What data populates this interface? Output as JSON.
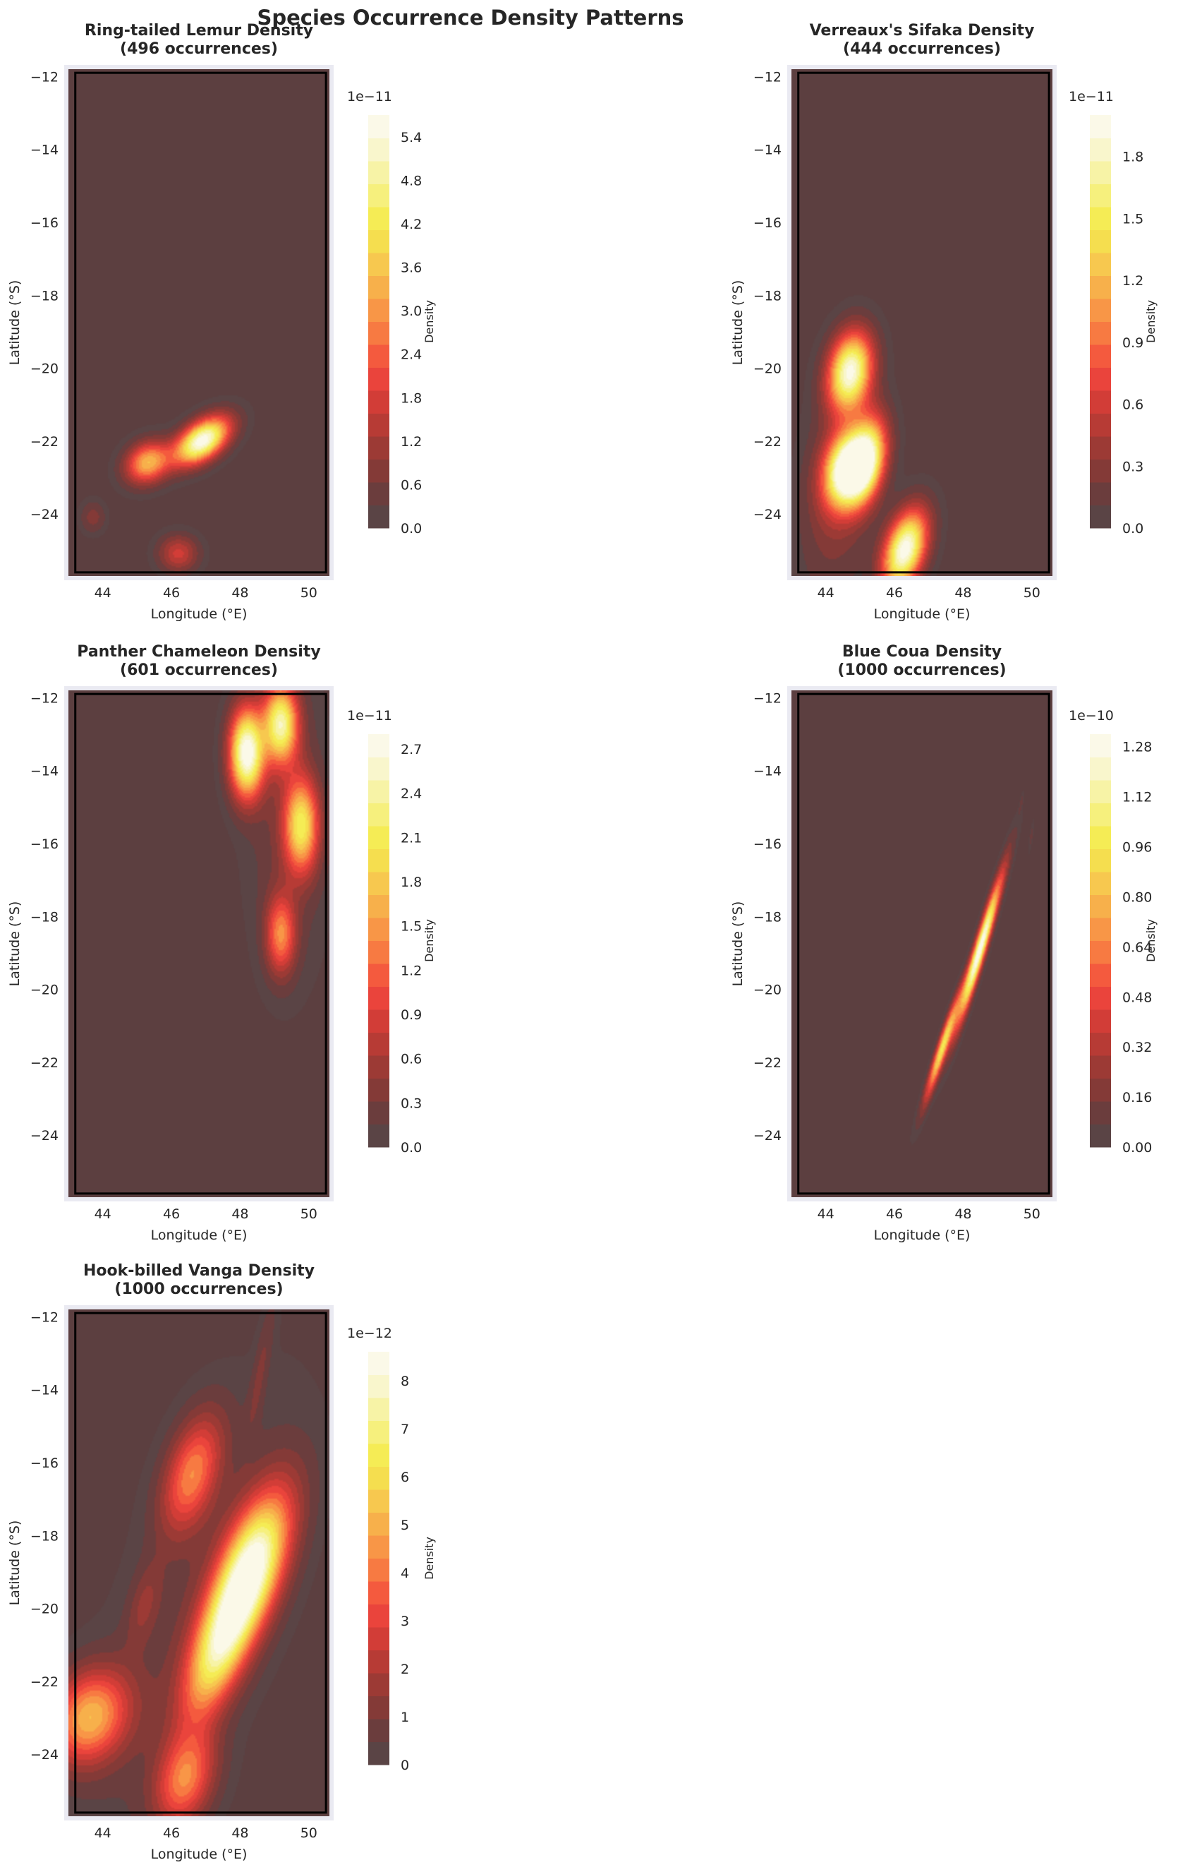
{
  "figure": {
    "title": "Species Occurrence Density Patterns"
  },
  "colors": {
    "background_fill": "#5c3f40",
    "axes_frame": "#eaeaf2",
    "colormap": [
      "#5a4445",
      "#6b3d3d",
      "#843a37",
      "#9c3a35",
      "#b73b35",
      "#d23d37",
      "#ea443c",
      "#f45a3e",
      "#f77a42",
      "#f89647",
      "#f7b04b",
      "#f7c84f",
      "#f5de4f",
      "#f5ec55",
      "#f6f07d",
      "#f7f3a6",
      "#f9f6cc",
      "#fbf9e8"
    ]
  },
  "chart_data": [
    {
      "type": "heatmap",
      "title": "Ring-tailed Lemur Density\n(496 occurrences)",
      "title_lines": [
        "Ring-tailed Lemur Density",
        "(496 occurrences)"
      ],
      "xlabel": "Longitude (°E)",
      "ylabel": "Latitude (°S)",
      "xlim": [
        43.0,
        50.6
      ],
      "ylim": [
        -25.7,
        -11.8
      ],
      "xticks": [
        44,
        46,
        48,
        50
      ],
      "yticks": [
        -12,
        -14,
        -16,
        -18,
        -20,
        -22,
        -24
      ],
      "colorbar": {
        "label": "Density",
        "offset_text": "1e−11",
        "ticks": [
          "0.0",
          "0.6",
          "1.2",
          "1.8",
          "2.4",
          "3.0",
          "3.6",
          "4.2",
          "4.8",
          "5.4"
        ],
        "max": 5.7
      },
      "hotspots": [
        {
          "lon": 46.9,
          "lat": -22.0,
          "sx": 0.55,
          "sy": 0.45,
          "rho": 0.5,
          "amp": 5.7
        },
        {
          "lon": 45.3,
          "lat": -22.6,
          "sx": 0.45,
          "sy": 0.4,
          "rho": 0.2,
          "amp": 3.4
        },
        {
          "lon": 46.2,
          "lat": -25.1,
          "sx": 0.4,
          "sy": 0.35,
          "rho": 0.0,
          "amp": 1.7
        },
        {
          "lon": 43.7,
          "lat": -24.1,
          "sx": 0.25,
          "sy": 0.3,
          "rho": 0.0,
          "amp": 0.8
        }
      ]
    },
    {
      "type": "heatmap",
      "title": "Verreaux's Sifaka Density\n(444 occurrences)",
      "title_lines": [
        "Verreaux's Sifaka Density",
        "(444 occurrences)"
      ],
      "xlabel": "Longitude (°E)",
      "ylabel": "Latitude (°S)",
      "xlim": [
        43.0,
        50.6
      ],
      "ylim": [
        -25.7,
        -11.8
      ],
      "xticks": [
        44,
        46,
        48,
        50
      ],
      "yticks": [
        -12,
        -14,
        -16,
        -18,
        -20,
        -22,
        -24
      ],
      "colorbar": {
        "label": "Density",
        "offset_text": "1e−11",
        "ticks": [
          "0.0",
          "0.3",
          "0.6",
          "0.9",
          "1.2",
          "1.5",
          "1.8"
        ],
        "max": 2.0
      },
      "hotspots": [
        {
          "lon": 44.7,
          "lat": -20.1,
          "sx": 0.45,
          "sy": 0.75,
          "rho": 0.2,
          "amp": 1.9
        },
        {
          "lon": 44.6,
          "lat": -22.8,
          "sx": 0.45,
          "sy": 0.7,
          "rho": 0.2,
          "amp": 1.95
        },
        {
          "lon": 45.2,
          "lat": -22.5,
          "sx": 0.4,
          "sy": 0.8,
          "rho": 0.3,
          "amp": 1.6
        },
        {
          "lon": 46.3,
          "lat": -25.0,
          "sx": 0.45,
          "sy": 0.75,
          "rho": 0.4,
          "amp": 2.0
        },
        {
          "lon": 44.3,
          "lat": -23.5,
          "sx": 0.7,
          "sy": 1.8,
          "rho": 0.2,
          "amp": 0.35
        }
      ]
    },
    {
      "type": "heatmap",
      "title": "Panther Chameleon Density\n(601 occurrences)",
      "title_lines": [
        "Panther Chameleon Density",
        "(601 occurrences)"
      ],
      "xlabel": "Longitude (°E)",
      "ylabel": "Latitude (°S)",
      "xlim": [
        43.0,
        50.6
      ],
      "ylim": [
        -25.7,
        -11.8
      ],
      "xticks": [
        44,
        46,
        48,
        50
      ],
      "yticks": [
        -12,
        -14,
        -16,
        -18,
        -20,
        -22,
        -24
      ],
      "colorbar": {
        "label": "Density",
        "offset_text": "1e−11",
        "ticks": [
          "0.0",
          "0.3",
          "0.6",
          "0.9",
          "1.2",
          "1.5",
          "1.8",
          "2.1",
          "2.4",
          "2.7"
        ],
        "max": 2.8
      },
      "hotspots": [
        {
          "lon": 48.2,
          "lat": -13.5,
          "sx": 0.35,
          "sy": 0.85,
          "rho": 0.0,
          "amp": 2.8
        },
        {
          "lon": 49.2,
          "lat": -12.7,
          "sx": 0.35,
          "sy": 0.75,
          "rho": 0.0,
          "amp": 2.3
        },
        {
          "lon": 49.8,
          "lat": -15.5,
          "sx": 0.35,
          "sy": 0.9,
          "rho": 0.0,
          "amp": 1.9
        },
        {
          "lon": 49.2,
          "lat": -18.5,
          "sx": 0.3,
          "sy": 0.75,
          "rho": 0.0,
          "amp": 1.3
        },
        {
          "lon": 49.4,
          "lat": -15.5,
          "sx": 0.8,
          "sy": 2.8,
          "rho": 0.0,
          "amp": 0.3
        }
      ]
    },
    {
      "type": "heatmap",
      "title": "Blue Coua Density\n(1000 occurrences)",
      "title_lines": [
        "Blue Coua Density",
        "(1000 occurrences)"
      ],
      "xlabel": "Longitude (°E)",
      "ylabel": "Latitude (°S)",
      "xlim": [
        43.0,
        50.6
      ],
      "ylim": [
        -25.7,
        -11.8
      ],
      "xticks": [
        44,
        46,
        48,
        50
      ],
      "yticks": [
        -12,
        -14,
        -16,
        -18,
        -20,
        -22,
        -24
      ],
      "colorbar": {
        "label": "Density",
        "offset_text": "1e−10",
        "ticks": [
          "0.00",
          "0.16",
          "0.32",
          "0.48",
          "0.64",
          "0.80",
          "0.96",
          "1.12",
          "1.28"
        ],
        "max": 1.32
      },
      "hotspots": [
        {
          "lon": 48.5,
          "lat": -18.9,
          "sx": 0.45,
          "sy": 1.4,
          "rho": 0.96,
          "amp": 1.32
        },
        {
          "lon": 47.4,
          "lat": -21.6,
          "sx": 0.35,
          "sy": 1.0,
          "rho": 0.95,
          "amp": 0.95
        },
        {
          "lon": 49.7,
          "lat": -14.9,
          "sx": 0.05,
          "sy": 0.2,
          "rho": 0.8,
          "amp": 0.1
        },
        {
          "lon": 50.0,
          "lat": -15.8,
          "sx": 0.06,
          "sy": 0.3,
          "rho": 0.8,
          "amp": 0.1
        }
      ]
    },
    {
      "type": "heatmap",
      "title": "Hook-billed Vanga Density\n(1000 occurrences)",
      "title_lines": [
        "Hook-billed Vanga Density",
        "(1000 occurrences)"
      ],
      "xlabel": "Longitude (°E)",
      "ylabel": "Latitude (°S)",
      "xlim": [
        43.0,
        50.6
      ],
      "ylim": [
        -25.7,
        -11.8
      ],
      "xticks": [
        44,
        46,
        48,
        50
      ],
      "yticks": [
        -12,
        -14,
        -16,
        -18,
        -20,
        -22,
        -24
      ],
      "colorbar": {
        "label": "Density",
        "offset_text": "1e−12",
        "ticks": [
          "0",
          "1",
          "2",
          "3",
          "4",
          "5",
          "6",
          "7",
          "8"
        ],
        "max": 8.6
      },
      "hotspots": [
        {
          "lon": 48.3,
          "lat": -19.0,
          "sx": 0.8,
          "sy": 1.5,
          "rho": 0.6,
          "amp": 8.6
        },
        {
          "lon": 47.3,
          "lat": -21.3,
          "sx": 0.7,
          "sy": 1.3,
          "rho": 0.6,
          "amp": 5.0
        },
        {
          "lon": 46.6,
          "lat": -16.3,
          "sx": 0.6,
          "sy": 1.1,
          "rho": 0.45,
          "amp": 4.0
        },
        {
          "lon": 43.6,
          "lat": -23.0,
          "sx": 0.8,
          "sy": 0.9,
          "rho": 0.2,
          "amp": 5.0
        },
        {
          "lon": 46.4,
          "lat": -24.7,
          "sx": 0.6,
          "sy": 0.9,
          "rho": 0.3,
          "amp": 4.0
        },
        {
          "lon": 45.2,
          "lat": -19.9,
          "sx": 0.35,
          "sy": 0.8,
          "rho": 0.5,
          "amp": 1.2
        },
        {
          "lon": 48.6,
          "lat": -13.5,
          "sx": 0.3,
          "sy": 1.4,
          "rho": 0.85,
          "amp": 0.9
        },
        {
          "lon": 46.5,
          "lat": -20.5,
          "sx": 2.2,
          "sy": 4.5,
          "rho": 0.7,
          "amp": 0.7
        }
      ]
    }
  ]
}
